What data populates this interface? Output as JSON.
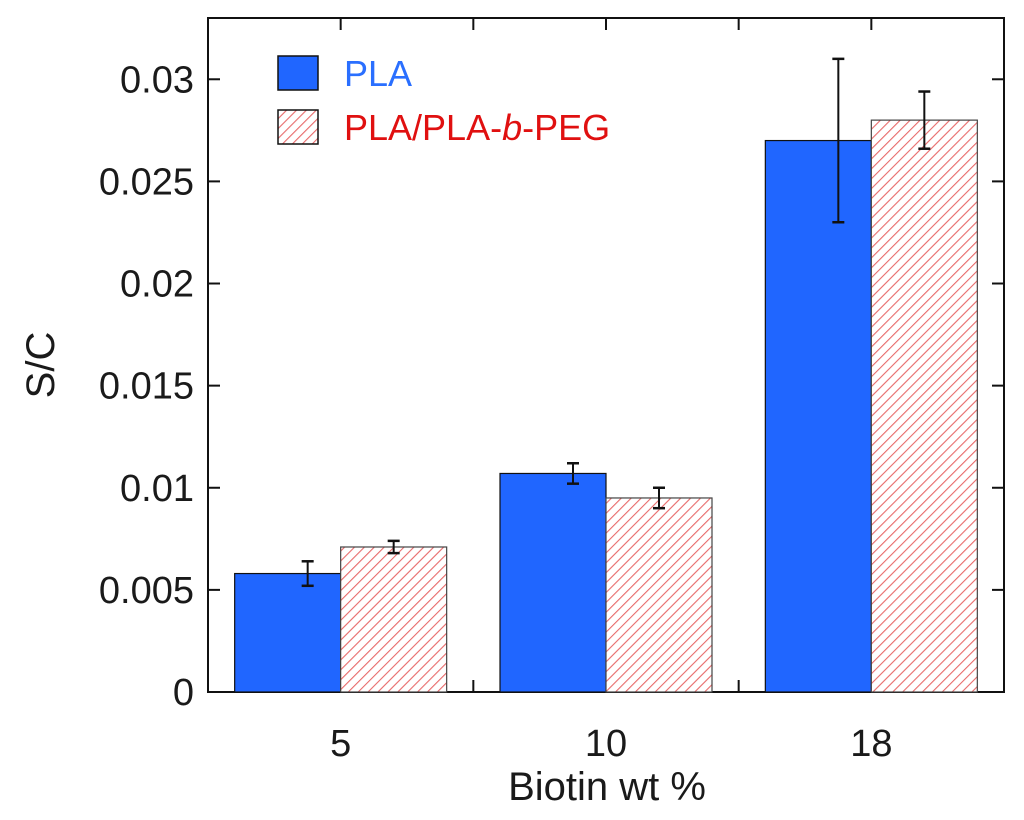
{
  "chart_data": {
    "type": "bar",
    "title": "",
    "xlabel": "Biotin wt %",
    "ylabel": "S/C",
    "categories": [
      "5",
      "10",
      "18"
    ],
    "ylim": [
      0,
      0.033
    ],
    "yticks": [
      0,
      0.005,
      0.01,
      0.015,
      0.02,
      0.025,
      0.03
    ],
    "ytick_labels": [
      "0",
      "0.005",
      "0.01",
      "0.015",
      "0.02",
      "0.025",
      "0.03"
    ],
    "legend_position": "top-left",
    "series": [
      {
        "name": "PLA",
        "label_parts": [
          "PLA"
        ],
        "color": "#2066ff",
        "text_color": "#2a6fff",
        "fill": "solid",
        "values": [
          0.0058,
          0.0107,
          0.027
        ],
        "errors": [
          0.0006,
          0.0005,
          0.004
        ]
      },
      {
        "name": "PLA/PLA-b-PEG",
        "label_parts": [
          "PLA/PLA-",
          "b",
          "-PEG"
        ],
        "color": "#e85050",
        "text_color": "#e01010",
        "fill": "hatched",
        "values": [
          0.0071,
          0.0095,
          0.028
        ],
        "errors": [
          0.0003,
          0.0005,
          0.0014
        ]
      }
    ]
  }
}
